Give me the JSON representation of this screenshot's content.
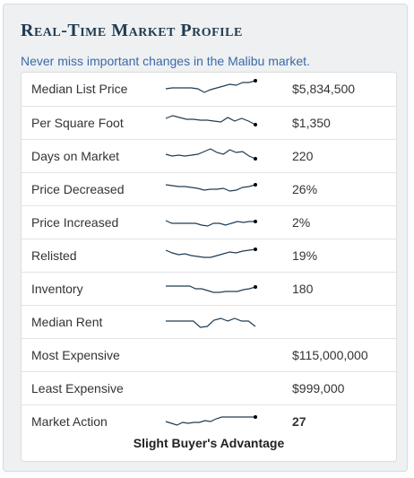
{
  "title": "Real-Time Market Profile",
  "subtitle": "Never miss important changes in the Malibu market.",
  "colors": {
    "title": "#213c52",
    "subtitle": "#3a6aa8",
    "sparkline": "#213c52"
  },
  "rows": [
    {
      "label": "Median List Price",
      "value": "$5,834,500",
      "spark": [
        14,
        13,
        13,
        13,
        13,
        14,
        18,
        15,
        13,
        11,
        9,
        10,
        7,
        7,
        5
      ]
    },
    {
      "label": "Per Square Foot",
      "value": "$1,350",
      "spark": [
        9,
        6,
        8,
        10,
        10,
        11,
        11,
        12,
        13,
        8,
        12,
        9,
        12,
        16
      ]
    },
    {
      "label": "Days on Market",
      "value": "220",
      "spark": [
        12,
        14,
        13,
        14,
        13,
        12,
        9,
        6,
        10,
        12,
        7,
        10,
        9,
        14,
        17
      ]
    },
    {
      "label": "Price Decreased",
      "value": "26%",
      "spark": [
        9,
        10,
        11,
        11,
        12,
        13,
        15,
        14,
        14,
        13,
        16,
        15,
        12,
        11,
        9
      ]
    },
    {
      "label": "Price Increased",
      "value": "2%",
      "spark": [
        12,
        15,
        15,
        15,
        15,
        15,
        17,
        18,
        15,
        15,
        17,
        15,
        13,
        14,
        13,
        13
      ]
    },
    {
      "label": "Relisted",
      "value": "19%",
      "spark": [
        8,
        11,
        13,
        12,
        14,
        15,
        16,
        16,
        14,
        12,
        10,
        11,
        9,
        8,
        7
      ]
    },
    {
      "label": "Inventory",
      "value": "180",
      "spark": [
        11,
        11,
        11,
        11,
        11,
        14,
        14,
        16,
        18,
        18,
        17,
        17,
        17,
        15,
        14,
        12
      ]
    },
    {
      "label": "Median Rent",
      "value": "",
      "spark": [
        13,
        13,
        13,
        13,
        13,
        20,
        19,
        12,
        10,
        13,
        10,
        13,
        13,
        19
      ]
    },
    {
      "label": "Most Expensive",
      "value": "$115,000,000",
      "spark": null
    },
    {
      "label": "Least Expensive",
      "value": "$999,000",
      "spark": null
    },
    {
      "label": "Market Action",
      "value": "27",
      "spark": [
        14,
        16,
        18,
        15,
        16,
        15,
        15,
        13,
        14,
        11,
        9,
        9,
        9,
        9,
        9,
        9,
        9
      ]
    }
  ],
  "verdict": "Slight Buyer's Advantage"
}
